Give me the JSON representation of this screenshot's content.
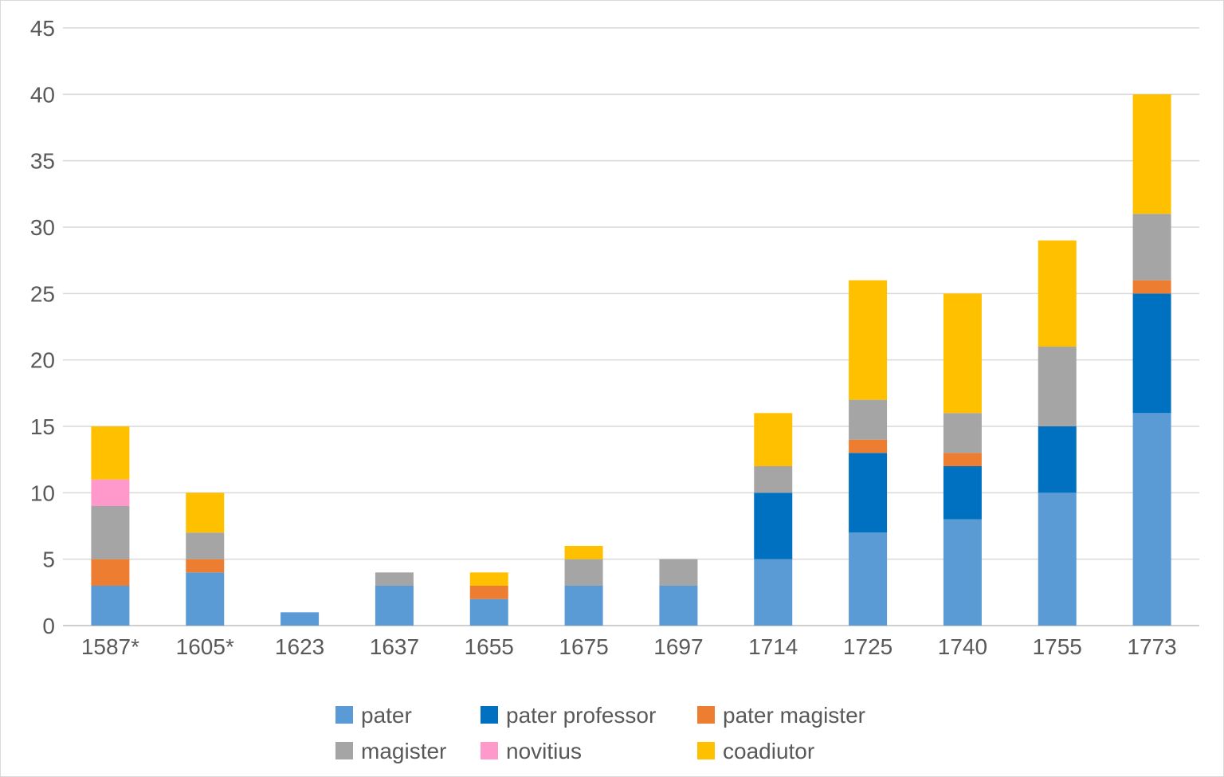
{
  "chart_data": {
    "type": "bar",
    "stacked": true,
    "title": "",
    "xlabel": "",
    "ylabel": "",
    "ylim": [
      0,
      45
    ],
    "yticks": [
      0,
      5,
      10,
      15,
      20,
      25,
      30,
      35,
      40,
      45
    ],
    "grid": true,
    "legend_position": "bottom",
    "categories": [
      "1587*",
      "1605*",
      "1623",
      "1637",
      "1655",
      "1675",
      "1697",
      "1714",
      "1725",
      "1740",
      "1755",
      "1773"
    ],
    "series": [
      {
        "name": "pater",
        "color": "#5b9bd5",
        "values": [
          3,
          4,
          1,
          3,
          2,
          3,
          3,
          5,
          7,
          8,
          10,
          16
        ]
      },
      {
        "name": "pater professor",
        "color": "#0070c0",
        "values": [
          0,
          0,
          0,
          0,
          0,
          0,
          0,
          5,
          6,
          4,
          5,
          9
        ]
      },
      {
        "name": "pater magister",
        "color": "#ed7d31",
        "values": [
          2,
          1,
          0,
          0,
          1,
          0,
          0,
          0,
          1,
          1,
          0,
          1
        ]
      },
      {
        "name": "magister",
        "color": "#a5a5a5",
        "values": [
          4,
          2,
          0,
          1,
          0,
          2,
          2,
          2,
          3,
          3,
          6,
          5
        ]
      },
      {
        "name": "novitius",
        "color": "#ff99cc",
        "values": [
          2,
          0,
          0,
          0,
          0,
          0,
          0,
          0,
          0,
          0,
          0,
          0
        ]
      },
      {
        "name": "coadiutor",
        "color": "#ffc000",
        "values": [
          4,
          3,
          0,
          0,
          1,
          1,
          0,
          4,
          9,
          9,
          8,
          9
        ]
      }
    ]
  }
}
